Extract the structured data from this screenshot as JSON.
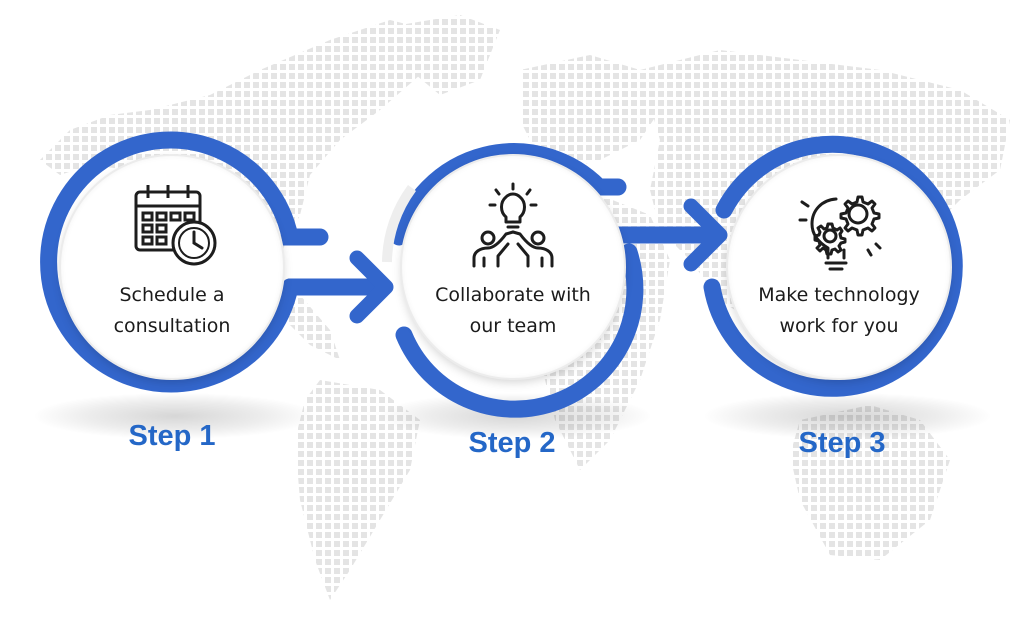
{
  "colors": {
    "ring": "#3366cc",
    "step_label": "#2467c7",
    "map_dots": "#e4e4e4",
    "icon": "#1d1d1d"
  },
  "steps": [
    {
      "icon": "calendar-clock-icon",
      "text_lines": [
        "Schedule a",
        "consultation"
      ],
      "label": "Step 1"
    },
    {
      "icon": "teamwork-idea-icon",
      "text_lines": [
        "Collaborate with",
        "our team"
      ],
      "label": "Step 2"
    },
    {
      "icon": "gear-lightbulb-icon",
      "text_lines": [
        "Make technology",
        "work for you"
      ],
      "label": "Step 3"
    }
  ]
}
